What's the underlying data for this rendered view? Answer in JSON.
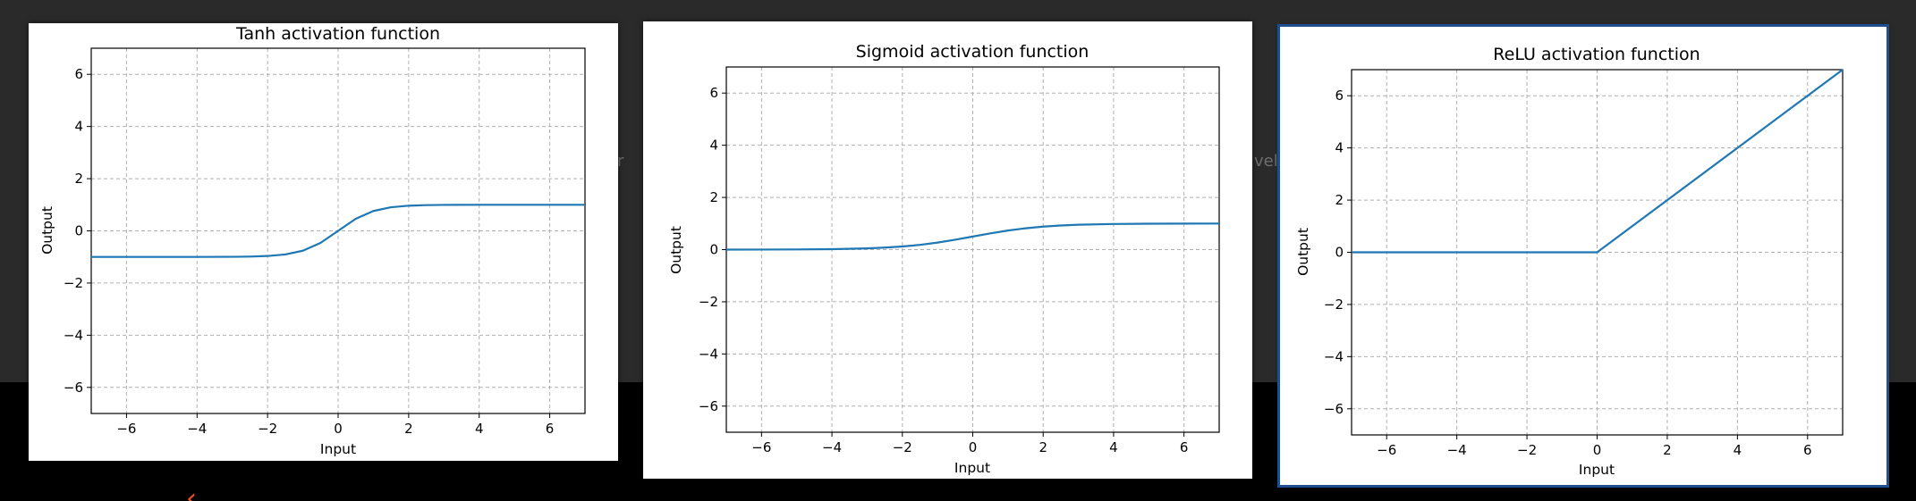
{
  "background": {
    "top_color": "#2a2a2a",
    "bottom_color": "#000000",
    "ghost_texts": [
      "r",
      "velo"
    ],
    "brand_mark": "‹"
  },
  "chart_data": [
    {
      "type": "line",
      "function": "tanh",
      "title": "Tanh activation function",
      "xlabel": "Input",
      "ylabel": "Output",
      "xlim": [
        -7,
        7
      ],
      "ylim": [
        -7,
        7
      ],
      "xticks": [
        -6,
        -4,
        -2,
        0,
        2,
        4,
        6
      ],
      "yticks": [
        -6,
        -4,
        -2,
        0,
        2,
        4,
        6
      ],
      "xtick_labels": [
        "−6",
        "−4",
        "−2",
        "0",
        "2",
        "4",
        "6"
      ],
      "ytick_labels": [
        "−6",
        "−4",
        "−2",
        "0",
        "2",
        "4",
        "6"
      ],
      "grid": true,
      "color": "#1f77b4",
      "selected": false,
      "series": [
        {
          "x": [
            -7,
            -6,
            -5,
            -4,
            -3,
            -2.5,
            -2,
            -1.5,
            -1,
            -0.5,
            0,
            0.5,
            1,
            1.5,
            2,
            2.5,
            3,
            4,
            5,
            6,
            7
          ],
          "y": [
            -1.0,
            -1.0,
            -1.0,
            -0.999,
            -0.995,
            -0.987,
            -0.964,
            -0.905,
            -0.762,
            -0.462,
            0.0,
            0.462,
            0.762,
            0.905,
            0.964,
            0.987,
            0.995,
            0.999,
            1.0,
            1.0,
            1.0
          ]
        }
      ]
    },
    {
      "type": "line",
      "function": "sigmoid",
      "title": "Sigmoid activation function",
      "xlabel": "Input",
      "ylabel": "Output",
      "xlim": [
        -7,
        7
      ],
      "ylim": [
        -7,
        7
      ],
      "xticks": [
        -6,
        -4,
        -2,
        0,
        2,
        4,
        6
      ],
      "yticks": [
        -6,
        -4,
        -2,
        0,
        2,
        4,
        6
      ],
      "xtick_labels": [
        "−6",
        "−4",
        "−2",
        "0",
        "2",
        "4",
        "6"
      ],
      "ytick_labels": [
        "−6",
        "−4",
        "−2",
        "0",
        "2",
        "4",
        "6"
      ],
      "grid": true,
      "color": "#1f77b4",
      "selected": false,
      "series": [
        {
          "x": [
            -7,
            -6,
            -5,
            -4,
            -3,
            -2.5,
            -2,
            -1.5,
            -1,
            -0.5,
            0,
            0.5,
            1,
            1.5,
            2,
            2.5,
            3,
            4,
            5,
            6,
            7
          ],
          "y": [
            0.001,
            0.002,
            0.007,
            0.018,
            0.047,
            0.076,
            0.119,
            0.182,
            0.269,
            0.378,
            0.5,
            0.622,
            0.731,
            0.818,
            0.881,
            0.924,
            0.953,
            0.982,
            0.993,
            0.998,
            0.999
          ]
        }
      ]
    },
    {
      "type": "line",
      "function": "relu",
      "title": "ReLU activation function",
      "xlabel": "Input",
      "ylabel": "Output",
      "xlim": [
        -7,
        7
      ],
      "ylim": [
        -7,
        7
      ],
      "xticks": [
        -6,
        -4,
        -2,
        0,
        2,
        4,
        6
      ],
      "yticks": [
        -6,
        -4,
        -2,
        0,
        2,
        4,
        6
      ],
      "xtick_labels": [
        "−6",
        "−4",
        "−2",
        "0",
        "2",
        "4",
        "6"
      ],
      "ytick_labels": [
        "−6",
        "−4",
        "−2",
        "0",
        "2",
        "4",
        "6"
      ],
      "grid": true,
      "color": "#1f77b4",
      "selected": true,
      "series": [
        {
          "x": [
            -7,
            0,
            7
          ],
          "y": [
            0,
            0,
            7
          ]
        }
      ]
    }
  ]
}
